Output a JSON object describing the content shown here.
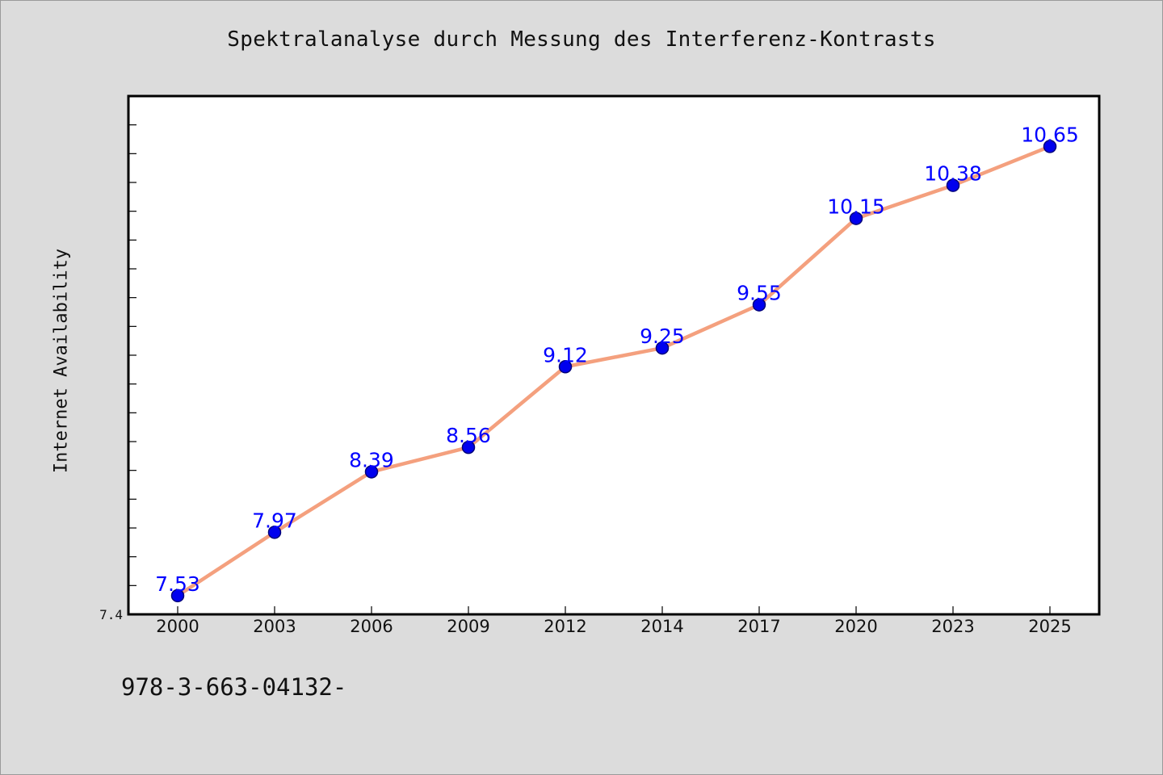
{
  "chart_data": {
    "type": "line",
    "title": "Spektralanalyse durch Messung des Interferenz-Kontrasts",
    "xlabel": "",
    "ylabel": "Internet Availability",
    "categories": [
      "2000",
      "2003",
      "2006",
      "2009",
      "2012",
      "2014",
      "2017",
      "2020",
      "2023",
      "2025"
    ],
    "series": [
      {
        "values": [
          7.53,
          7.97,
          8.39,
          8.56,
          9.12,
          9.25,
          9.55,
          10.15,
          10.38,
          10.65
        ],
        "line_color": "#f4a07e",
        "marker_color": "#0000ee"
      }
    ],
    "data_labels": [
      "7.53",
      "7.97",
      "8.39",
      "8.56",
      "9.12",
      "9.25",
      "9.55",
      "10.15",
      "10.38",
      "10.65"
    ],
    "ylim": [
      7.4,
      11.0
    ],
    "y_tick_labels": [
      "7.4"
    ],
    "grid": false,
    "legend": "none"
  },
  "footer_text": "978-3-663-04132-"
}
